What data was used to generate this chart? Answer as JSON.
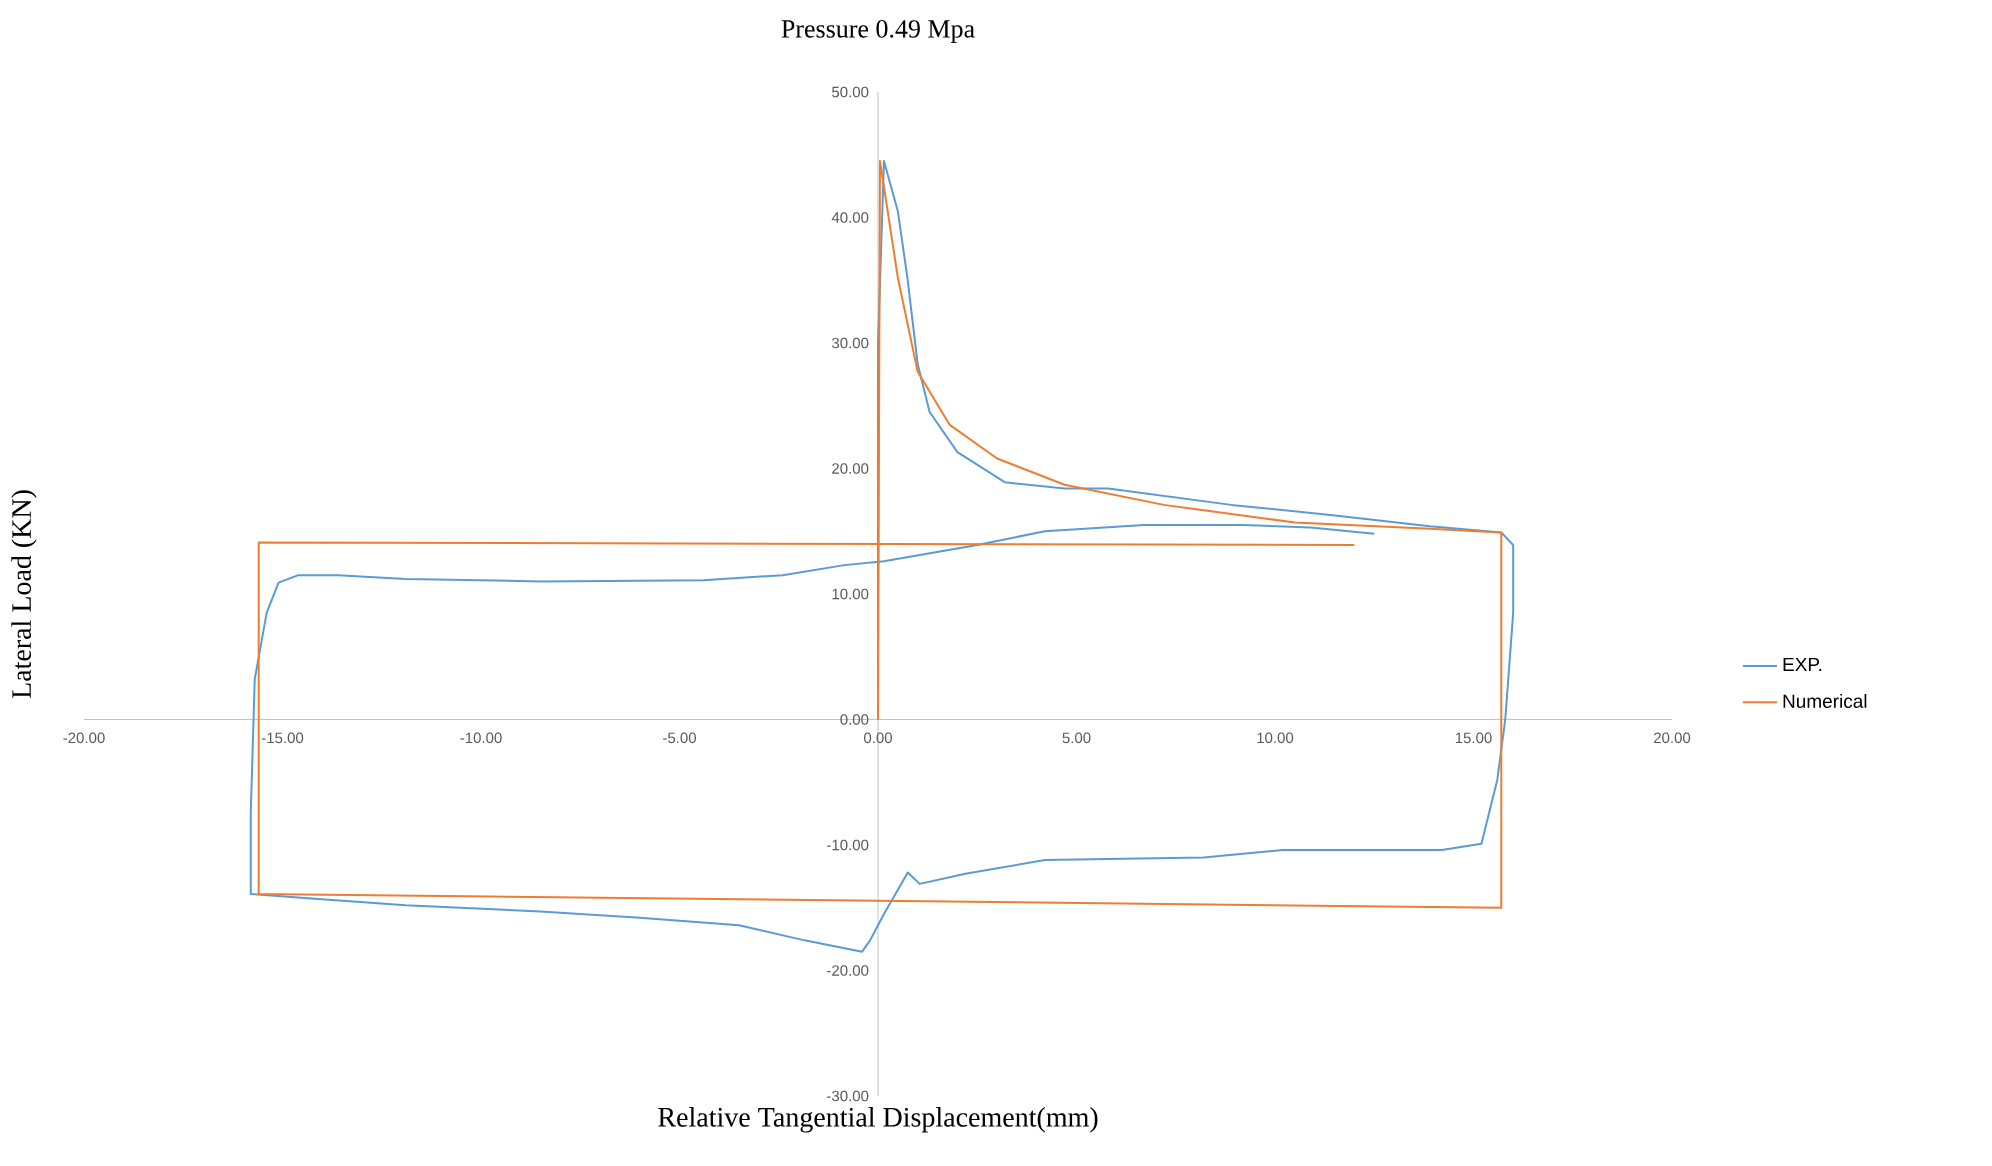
{
  "chart_data": {
    "type": "line",
    "title": "Pressure 0.49 Mpa",
    "xlabel": "Relative Tangential Displacement(mm)",
    "ylabel": "Lateral Load (KN)",
    "xlim": [
      -20,
      20
    ],
    "ylim": [
      -30,
      50
    ],
    "xticks": [
      {
        "value": -20,
        "label": "-20.00"
      },
      {
        "value": -15,
        "label": "-15.00"
      },
      {
        "value": -10,
        "label": "-10.00"
      },
      {
        "value": -5,
        "label": "-5.00"
      },
      {
        "value": 0,
        "label": "0.00"
      },
      {
        "value": 5,
        "label": "5.00"
      },
      {
        "value": 10,
        "label": "10.00"
      },
      {
        "value": 15,
        "label": "15.00"
      },
      {
        "value": 20,
        "label": "20.00"
      }
    ],
    "yticks": [
      {
        "value": -30,
        "label": "-30.00"
      },
      {
        "value": -20,
        "label": "-20.00"
      },
      {
        "value": -10,
        "label": "-10.00"
      },
      {
        "value": 0,
        "label": "0.00"
      },
      {
        "value": 10,
        "label": "10.00"
      },
      {
        "value": 20,
        "label": "20.00"
      },
      {
        "value": 30,
        "label": "30.00"
      },
      {
        "value": 40,
        "label": "40.00"
      },
      {
        "value": 50,
        "label": "50.00"
      }
    ],
    "legend": "right",
    "marker": "none",
    "line_style": "solid",
    "series": [
      {
        "name": "EXP.",
        "color": "#5b9bd5",
        "x": [
          0,
          0,
          0.15,
          0.5,
          0.74,
          1,
          1.3,
          2,
          3.2,
          4.7,
          5.8,
          8.9,
          11.4,
          13.9,
          15.7,
          16,
          16,
          15.8,
          15.6,
          15.2,
          14.2,
          10.2,
          8.2,
          4.2,
          2.2,
          1.05,
          0.75,
          0.15,
          -0.2,
          -0.4,
          -1.85,
          -3.5,
          -6,
          -8.5,
          -11.9,
          -14.1,
          -15.8,
          -15.8,
          -15.7,
          -15.4,
          -15.1,
          -14.6,
          -13.6,
          -11.9,
          -8.5,
          -4.4,
          -2.4,
          -0.85,
          0.15,
          2.5,
          4.2,
          6.7,
          9.2,
          10.9,
          12.5
        ],
        "values": [
          0,
          30,
          44.5,
          40.5,
          35.2,
          28.3,
          24.5,
          21.3,
          18.9,
          18.4,
          18.4,
          17.1,
          16.3,
          15.4,
          14.9,
          13.9,
          8.5,
          0,
          -4.8,
          -9.9,
          -10.4,
          -10.4,
          -11,
          -11.2,
          -12.3,
          -13.1,
          -12.2,
          -15.5,
          -17.6,
          -18.5,
          -17.6,
          -16.4,
          -15.8,
          -15.3,
          -14.8,
          -14.3,
          -13.9,
          -7.5,
          3.2,
          8.5,
          10.9,
          11.5,
          11.5,
          11.2,
          11,
          11.1,
          11.5,
          12.3,
          12.6,
          13.9,
          15,
          15.5,
          15.5,
          15.3,
          14.8
        ]
      },
      {
        "name": "Numerical",
        "color": "#ed7d31",
        "x": [
          0,
          0.05,
          0.5,
          1,
          1.8,
          3,
          4.7,
          7.2,
          10.5,
          13.9,
          15.7,
          15.7,
          -15.6,
          -15.6,
          12
        ],
        "values": [
          0,
          44.5,
          35.2,
          27.7,
          23.5,
          20.8,
          18.7,
          17.1,
          15.7,
          15.2,
          14.9,
          -15,
          -13.9,
          14.1,
          13.9
        ]
      }
    ]
  }
}
